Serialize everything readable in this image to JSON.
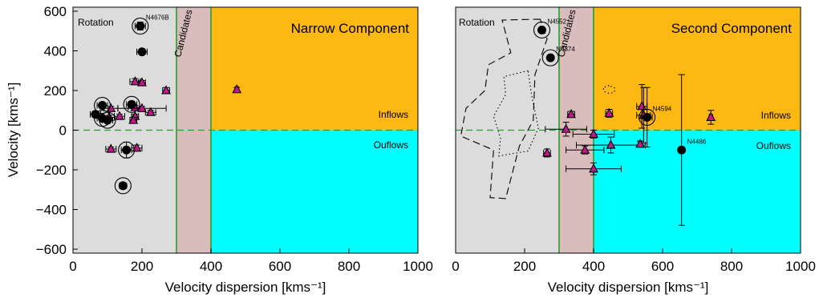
{
  "colors": {
    "rotation": "#dcdcdc",
    "candidates": "#d9bcbc",
    "inflow": "#fdb812",
    "outflow": "#00ffff",
    "zero_line": "#2ca02c",
    "boundary": "#2e9a2e",
    "triangle_fill": "#c2188c",
    "point": "#000000"
  },
  "chart_data": [
    {
      "type": "scatter",
      "title": "Narrow Component",
      "xlabel": "Velocity dispersion [kms⁻¹]",
      "ylabel": "Velocity [kms⁻¹]",
      "xlim": [
        0,
        1000
      ],
      "ylim": [
        -620,
        620
      ],
      "xticks": [
        "0",
        "200",
        "400",
        "600",
        "800",
        "1000"
      ],
      "yticks": [
        "−600",
        "−400",
        "−200",
        "0",
        "200",
        "400",
        "600"
      ],
      "region_labels": {
        "rotation": "Rotation",
        "candidates": "Candidates",
        "inflows": "Inflows",
        "outflows": "Ouflows"
      },
      "boundaries": [
        300,
        400
      ],
      "circles": [
        {
          "x": 195,
          "y": 525,
          "xerr": 15,
          "yerr": 20,
          "ringed": true,
          "label": "N4676B"
        },
        {
          "x": 200,
          "y": 395,
          "xerr": 15,
          "yerr": 10,
          "ringed": false
        },
        {
          "x": 85,
          "y": 125,
          "xerr": 15,
          "yerr": 10,
          "ringed": true
        },
        {
          "x": 170,
          "y": 130,
          "xerr": 15,
          "yerr": 15,
          "ringed": true
        },
        {
          "x": 65,
          "y": 80,
          "xerr": 15,
          "yerr": 10,
          "ringed": false
        },
        {
          "x": 85,
          "y": 60,
          "xerr": 15,
          "yerr": 10,
          "ringed": true
        },
        {
          "x": 100,
          "y": 50,
          "xerr": 15,
          "yerr": 10,
          "ringed": true
        },
        {
          "x": 155,
          "y": -100,
          "xerr": 15,
          "yerr": 40,
          "ringed": true
        },
        {
          "x": 145,
          "y": -280,
          "xerr": 10,
          "yerr": 10,
          "ringed": true
        }
      ],
      "triangles": [
        {
          "x": 180,
          "y": 245,
          "xerr": 15,
          "yerr": 15
        },
        {
          "x": 200,
          "y": 240,
          "xerr": 10,
          "yerr": 10
        },
        {
          "x": 270,
          "y": 200,
          "xerr": 10,
          "yerr": 15
        },
        {
          "x": 475,
          "y": 205,
          "xerr": 5,
          "yerr": 10
        },
        {
          "x": 110,
          "y": 110,
          "xerr": 20,
          "yerr": 10
        },
        {
          "x": 180,
          "y": 115,
          "xerr": 20,
          "yerr": 10
        },
        {
          "x": 200,
          "y": 110,
          "xerr": 70,
          "yerr": 10
        },
        {
          "x": 225,
          "y": 90,
          "xerr": 15,
          "yerr": 10
        },
        {
          "x": 135,
          "y": 70,
          "xerr": 15,
          "yerr": 10
        },
        {
          "x": 105,
          "y": 65,
          "xerr": 15,
          "yerr": 10
        },
        {
          "x": 180,
          "y": 70,
          "xerr": 10,
          "yerr": 10
        },
        {
          "x": 175,
          "y": 50,
          "xerr": 10,
          "yerr": 15
        },
        {
          "x": 110,
          "y": -95,
          "xerr": 15,
          "yerr": 10
        },
        {
          "x": 185,
          "y": -90,
          "xerr": 15,
          "yerr": 15
        }
      ]
    },
    {
      "type": "scatter",
      "title": "Second Component",
      "xlabel": "Velocity dispersion [kms⁻¹]",
      "ylabel": "",
      "xlim": [
        0,
        1000
      ],
      "ylim": [
        -620,
        620
      ],
      "xticks": [
        "0",
        "200",
        "400",
        "600",
        "800",
        "1000"
      ],
      "yticks": [],
      "region_labels": {
        "rotation": "Rotation",
        "candidates": "Candidates",
        "inflows": "Inflows",
        "outflows": "Ouflows"
      },
      "boundaries": [
        300,
        400
      ],
      "circles": [
        {
          "x": 250,
          "y": 505,
          "xerr": 0,
          "yerr": 0,
          "ringed": true,
          "label": "N4552"
        },
        {
          "x": 275,
          "y": 365,
          "xerr": 0,
          "yerr": 0,
          "ringed": true,
          "label": "N4374"
        },
        {
          "x": 555,
          "y": 65,
          "xerr": 15,
          "yerr": 150,
          "ringed": true,
          "label": "N4594"
        },
        {
          "x": 655,
          "y": -100,
          "xerr": 0,
          "yerr": 380,
          "ringed": false,
          "label": "N4486"
        }
      ],
      "triangles": [
        {
          "x": 335,
          "y": 80,
          "xerr": 10,
          "yerr": 15
        },
        {
          "x": 445,
          "y": 85,
          "xerr": 10,
          "yerr": 20
        },
        {
          "x": 540,
          "y": 120,
          "xerr": 15,
          "yerr": 110
        },
        {
          "x": 545,
          "y": 75,
          "xerr": 20,
          "yerr": 140
        },
        {
          "x": 740,
          "y": 65,
          "xerr": 5,
          "yerr": 35
        },
        {
          "x": 320,
          "y": 5,
          "xerr": 60,
          "yerr": 35
        },
        {
          "x": 400,
          "y": -20,
          "xerr": 60,
          "yerr": 20
        },
        {
          "x": 450,
          "y": -75,
          "xerr": 100,
          "yerr": 40
        },
        {
          "x": 375,
          "y": -100,
          "xerr": 55,
          "yerr": 20
        },
        {
          "x": 265,
          "y": -115,
          "xerr": 10,
          "yerr": 20
        },
        {
          "x": 400,
          "y": -195,
          "xerr": 80,
          "yerr": 30
        },
        {
          "x": 535,
          "y": -70,
          "xerr": 5,
          "yerr": 15
        }
      ],
      "contours": [
        {
          "style": "dashed",
          "points": [
            [
              245,
              560
            ],
            [
              135,
              555
            ],
            [
              160,
              390
            ],
            [
              95,
              330
            ],
            [
              85,
              200
            ],
            [
              30,
              110
            ],
            [
              15,
              -30
            ],
            [
              110,
              -100
            ],
            [
              100,
              -340
            ],
            [
              145,
              -345
            ],
            [
              185,
              -80
            ],
            [
              225,
              50
            ],
            [
              230,
              280
            ],
            [
              265,
              460
            ],
            [
              245,
              560
            ]
          ]
        },
        {
          "style": "dotted",
          "points": [
            [
              210,
              300
            ],
            [
              140,
              270
            ],
            [
              145,
              180
            ],
            [
              110,
              70
            ],
            [
              130,
              -40
            ],
            [
              125,
              -130
            ],
            [
              210,
              -105
            ],
            [
              240,
              10
            ],
            [
              220,
              180
            ],
            [
              210,
              300
            ]
          ]
        },
        {
          "style": "dotted",
          "points": [
            [
              445,
              225
            ],
            [
              428,
              215
            ],
            [
              430,
              195
            ],
            [
              445,
              185
            ],
            [
              460,
              192
            ],
            [
              462,
              212
            ],
            [
              445,
              225
            ]
          ]
        }
      ]
    }
  ]
}
